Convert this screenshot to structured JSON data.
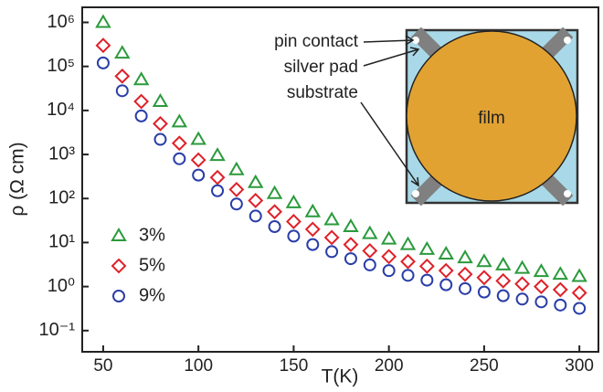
{
  "chart_data": {
    "type": "scatter",
    "x_label": "T(K)",
    "y_label": "ρ (Ω cm)",
    "log_y": true,
    "xlim": [
      39,
      310
    ],
    "ylim": [
      0.033,
      2200000
    ],
    "xticks": [
      50,
      100,
      150,
      200,
      250,
      300
    ],
    "yticks": [
      {
        "value": 0.1,
        "label": "10⁻¹"
      },
      {
        "value": 1,
        "label": "10⁰"
      },
      {
        "value": 10,
        "label": "10¹"
      },
      {
        "value": 100,
        "label": "10²"
      },
      {
        "value": 1000,
        "label": "10³"
      },
      {
        "value": 10000,
        "label": "10⁴"
      },
      {
        "value": 100000,
        "label": "10⁵"
      },
      {
        "value": 1000000,
        "label": "10⁶"
      }
    ],
    "x": [
      50,
      60,
      70,
      80,
      90,
      100,
      110,
      120,
      130,
      140,
      150,
      160,
      170,
      180,
      190,
      200,
      210,
      220,
      230,
      240,
      250,
      260,
      270,
      280,
      290,
      300
    ],
    "series": [
      {
        "name": "3%",
        "color": "#2a9a3c",
        "marker": "triangle",
        "values": [
          1000000,
          200000,
          50000,
          16000,
          5500,
          2200,
          950,
          450,
          230,
          130,
          80,
          50,
          33,
          23,
          16,
          12,
          9,
          7,
          5.5,
          4.5,
          3.7,
          3.1,
          2.6,
          2.2,
          1.9,
          1.7
        ]
      },
      {
        "name": "5%",
        "color": "#e02028",
        "marker": "diamond",
        "values": [
          300000,
          60000,
          16000,
          5000,
          1800,
          750,
          300,
          160,
          90,
          50,
          30,
          20,
          13,
          9,
          6.5,
          4.8,
          3.7,
          2.9,
          2.3,
          1.9,
          1.6,
          1.35,
          1.15,
          1.0,
          0.85,
          0.72
        ]
      },
      {
        "name": "9%",
        "color": "#2a3ea8",
        "marker": "circle",
        "values": [
          120000,
          28000,
          7500,
          2200,
          800,
          340,
          150,
          75,
          40,
          23,
          14,
          9,
          6.2,
          4.3,
          3.1,
          2.3,
          1.8,
          1.4,
          1.1,
          0.9,
          0.75,
          0.62,
          0.52,
          0.45,
          0.38,
          0.32
        ]
      }
    ],
    "annotations": [
      "pin contact",
      "silver pad",
      "substrate",
      "film"
    ]
  }
}
